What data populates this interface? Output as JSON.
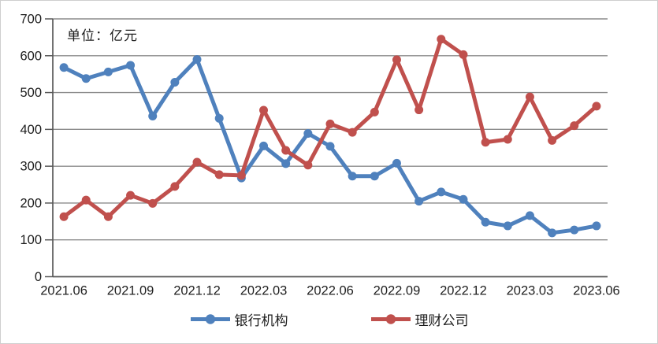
{
  "chart_data": {
    "type": "line",
    "title": "",
    "unit_label": "单位：亿元",
    "categories": [
      "2021.06",
      "2021.07",
      "2021.08",
      "2021.09",
      "2021.10",
      "2021.11",
      "2021.12",
      "2022.01",
      "2022.02",
      "2022.03",
      "2022.04",
      "2022.05",
      "2022.06",
      "2022.07",
      "2022.08",
      "2022.09",
      "2022.10",
      "2022.11",
      "2022.12",
      "2023.01",
      "2023.02",
      "2023.03",
      "2023.04",
      "2023.05",
      "2023.06"
    ],
    "x_tick_labels": [
      "2021.06",
      "2021.09",
      "2021.12",
      "2022.03",
      "2022.06",
      "2022.09",
      "2022.12",
      "2023.03",
      "2023.06"
    ],
    "x_tick_every": 3,
    "xlabel": "",
    "ylabel": "",
    "ylim": [
      0,
      700
    ],
    "y_tick_step": 100,
    "y_tick_labels": [
      "0",
      "100",
      "200",
      "300",
      "400",
      "500",
      "600",
      "700"
    ],
    "grid": true,
    "legend_position": "bottom",
    "series": [
      {
        "name": "银行机构",
        "color": "#4F81BD",
        "values": [
          568,
          538,
          556,
          574,
          436,
          528,
          590,
          430,
          268,
          355,
          307,
          389,
          354,
          273,
          273,
          308,
          205,
          230,
          210,
          148,
          138,
          166,
          119,
          127,
          138
        ]
      },
      {
        "name": "理财公司",
        "color": "#C0504D",
        "values": [
          163,
          208,
          163,
          221,
          199,
          245,
          311,
          277,
          275,
          452,
          343,
          303,
          415,
          392,
          447,
          589,
          453,
          645,
          603,
          365,
          373,
          488,
          370,
          410,
          463
        ]
      }
    ],
    "colors": {
      "grid": "#8c8c8c",
      "axis": "#595959",
      "text": "#1f1f1f"
    }
  }
}
